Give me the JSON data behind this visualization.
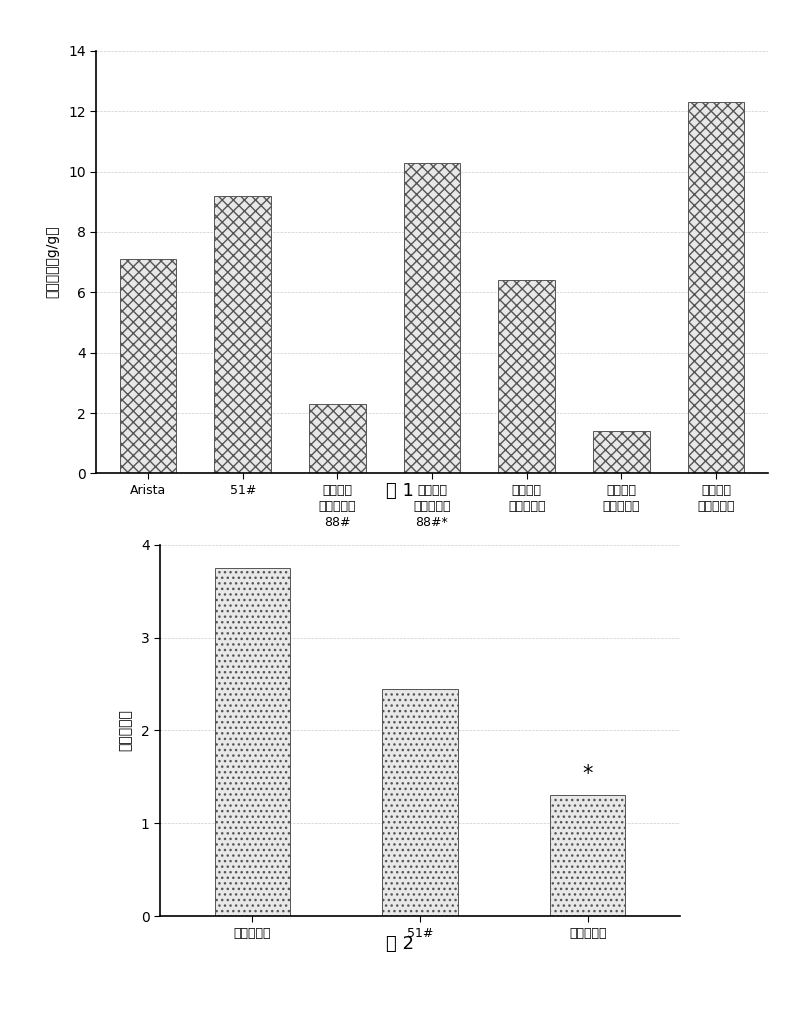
{
  "fig1": {
    "categories": [
      "Arista",
      "51#",
      "未糊化的\n羟乙基淀粉\n88#",
      "预糊化的\n羟乙基淀粉\n88#*",
      "预糊化的\n羧乙基淀粉",
      "未糊化的\n阳离子淀粉",
      "预糊化的\n阳离子淀粉"
    ],
    "values": [
      7.1,
      9.2,
      2.3,
      10.3,
      6.4,
      1.4,
      12.3
    ],
    "ylabel": "吸水倍率（g/g）",
    "ylim": [
      0,
      14
    ],
    "yticks": [
      0,
      2,
      4,
      6,
      8,
      10,
      12,
      14
    ],
    "caption": "图 1",
    "bar_facecolor": "#e8e8e8",
    "bar_hatch": "xxx",
    "bar_edgecolor": "#555555"
  },
  "fig2": {
    "categories": [
      "空白控制组",
      "51#",
      "透明质酸钠"
    ],
    "values": [
      3.75,
      2.45,
      1.3
    ],
    "ylabel": "肠粘连评分",
    "ylim": [
      0,
      4
    ],
    "yticks": [
      0,
      1,
      2,
      3,
      4
    ],
    "star_bar": 2,
    "caption": "图 2",
    "bar_facecolor": "#e8e8e8",
    "bar_hatch": "...",
    "bar_edgecolor": "#555555"
  },
  "background_color": "#ffffff",
  "font_size_label": 11,
  "font_size_tick": 10,
  "font_size_caption": 13
}
